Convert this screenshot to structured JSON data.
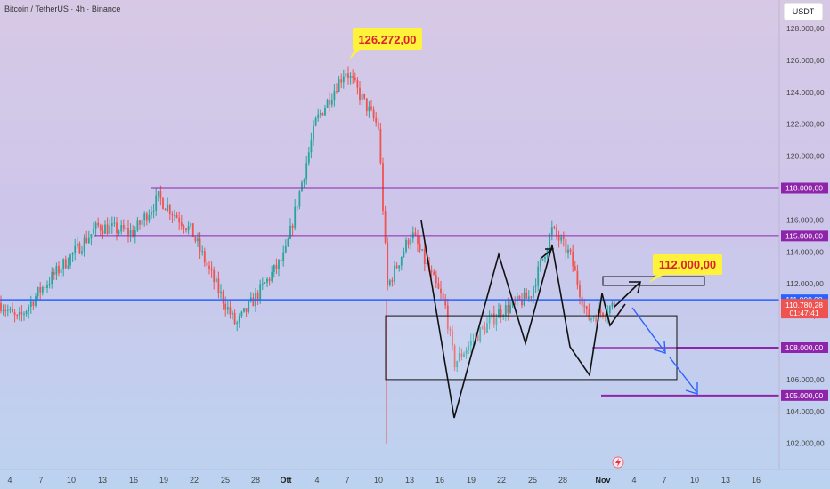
{
  "header": {
    "title": "Bitcoin / TetherUS · 4h · Binance"
  },
  "currency_button": {
    "label": "USDT"
  },
  "icons": {
    "flash_marker": "lightning-icon"
  },
  "colors": {
    "up": "#26a69a",
    "down": "#ef5350",
    "support_line": "#8e24aa",
    "price_line": "#2962ff",
    "callout_bg": "#fff23a",
    "callout_text": "#d9232f"
  },
  "chart_data": {
    "type": "candlestick",
    "title": "Bitcoin / TetherUS · 4h · Binance",
    "ylim": [
      101000,
      129000
    ],
    "y_ticks": [
      "128.000,00",
      "126.000,00",
      "124.000,00",
      "122.000,00",
      "120.000,00",
      "118.000,00",
      "116.000,00",
      "114.000,00",
      "112.000,00",
      "110.000,00",
      "108.000,00",
      "106.000,00",
      "104.000,00",
      "102.000,00"
    ],
    "x_ticks": [
      "4",
      "7",
      "10",
      "13",
      "16",
      "19",
      "22",
      "25",
      "28",
      "Ott",
      "4",
      "7",
      "10",
      "13",
      "16",
      "19",
      "22",
      "25",
      "28",
      "Nov",
      "4",
      "7",
      "10",
      "13",
      "16"
    ],
    "series_anchors": [
      {
        "x": "4",
        "price": 110800
      },
      {
        "x": "7",
        "price": 109700
      },
      {
        "x": "10",
        "price": 111600
      },
      {
        "x": "13",
        "price": 115600
      },
      {
        "x": "16",
        "price": 115200
      },
      {
        "x": "19",
        "price": 117400
      },
      {
        "x": "22",
        "price": 115300
      },
      {
        "x": "25",
        "price": 112200
      },
      {
        "x": "28",
        "price": 109400
      },
      {
        "x": "Ott",
        "price": 113800
      },
      {
        "x": "4",
        "price": 122200
      },
      {
        "x": "7",
        "price": 125400
      },
      {
        "x": "10",
        "price": 121800
      },
      {
        "x": "11",
        "price": 111800
      },
      {
        "x": "13",
        "price": 115200
      },
      {
        "x": "16",
        "price": 110600
      },
      {
        "x": "17",
        "price": 107000
      },
      {
        "x": "19",
        "price": 108400
      },
      {
        "x": "22",
        "price": 110200
      },
      {
        "x": "25",
        "price": 111200
      },
      {
        "x": "27",
        "price": 115400
      },
      {
        "x": "28",
        "price": 113800
      },
      {
        "x": "30",
        "price": 109800
      },
      {
        "x": "Nov",
        "price": 110780
      }
    ],
    "horizontal_levels": [
      {
        "label": "118.000,00",
        "value": 118000,
        "color": "#8e24aa"
      },
      {
        "label": "115.000,00",
        "value": 115000,
        "color": "#8e24aa"
      },
      {
        "label": "111.000,00",
        "value": 111000,
        "color": "#2962ff"
      },
      {
        "label": "108.000,00",
        "value": 108000,
        "color": "#8e24aa"
      },
      {
        "label": "105.000,00",
        "value": 105000,
        "color": "#8e24aa"
      }
    ],
    "last_price": {
      "label": "110.780,28",
      "countdown": "01:47:41",
      "value": 110780
    },
    "annotations": [
      {
        "label": "126.272,00",
        "value": 126272
      },
      {
        "label": "112.000,00",
        "value": 112000
      }
    ],
    "range_box": {
      "top": 110000,
      "bottom": 106000
    },
    "grid": false,
    "legend": "none"
  }
}
